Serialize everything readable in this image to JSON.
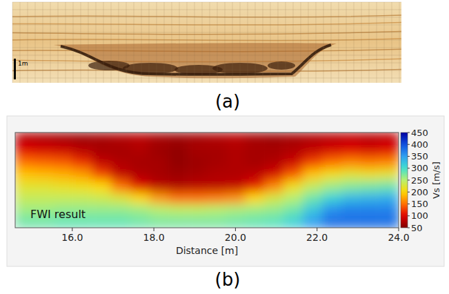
{
  "chart_data": {
    "type": "heatmap",
    "annotation": "FWI result",
    "xlabel": "Distance [m]",
    "xlim": [
      14.6,
      24.0
    ],
    "xticks": [
      {
        "value": 16,
        "label": "16.0"
      },
      {
        "value": 18,
        "label": "18.0"
      },
      {
        "value": 20,
        "label": "20.0"
      },
      {
        "value": 22,
        "label": "22.0"
      },
      {
        "value": 24,
        "label": "24.0"
      }
    ],
    "tick_labels": "x",
    "cells": [
      [
        80,
        75,
        70,
        65,
        70,
        75,
        80,
        70,
        65,
        70,
        75,
        80,
        70,
        65,
        70,
        75,
        80,
        85,
        80,
        85
      ],
      [
        100,
        95,
        90,
        80,
        70,
        70,
        75,
        65,
        60,
        70,
        70,
        75,
        70,
        70,
        75,
        85,
        95,
        100,
        95,
        100
      ],
      [
        150,
        145,
        140,
        120,
        85,
        75,
        70,
        70,
        60,
        65,
        70,
        75,
        70,
        75,
        90,
        130,
        150,
        160,
        155,
        160
      ],
      [
        190,
        185,
        180,
        170,
        130,
        85,
        75,
        70,
        65,
        70,
        75,
        75,
        80,
        95,
        140,
        190,
        210,
        220,
        215,
        220
      ],
      [
        220,
        220,
        215,
        210,
        200,
        150,
        100,
        80,
        75,
        80,
        80,
        85,
        110,
        160,
        210,
        240,
        260,
        270,
        275,
        280
      ],
      [
        240,
        240,
        240,
        240,
        235,
        225,
        200,
        170,
        150,
        150,
        155,
        165,
        200,
        230,
        250,
        280,
        310,
        330,
        335,
        340
      ],
      [
        260,
        260,
        265,
        265,
        265,
        265,
        260,
        250,
        245,
        245,
        250,
        255,
        260,
        265,
        280,
        320,
        360,
        370,
        370,
        370
      ],
      [
        280,
        280,
        285,
        285,
        285,
        285,
        280,
        275,
        275,
        275,
        275,
        280,
        285,
        290,
        310,
        350,
        380,
        380,
        380,
        380
      ]
    ],
    "colorbar_label": "Vs [m/s]",
    "colorbar_range": [
      50,
      450
    ],
    "colorbar_ticks": [
      50,
      100,
      150,
      200,
      250,
      300,
      350,
      400,
      450
    ]
  },
  "figure": {
    "panel_labels": [
      "(a)",
      "(b)"
    ],
    "photo_scale_label": "1m"
  }
}
